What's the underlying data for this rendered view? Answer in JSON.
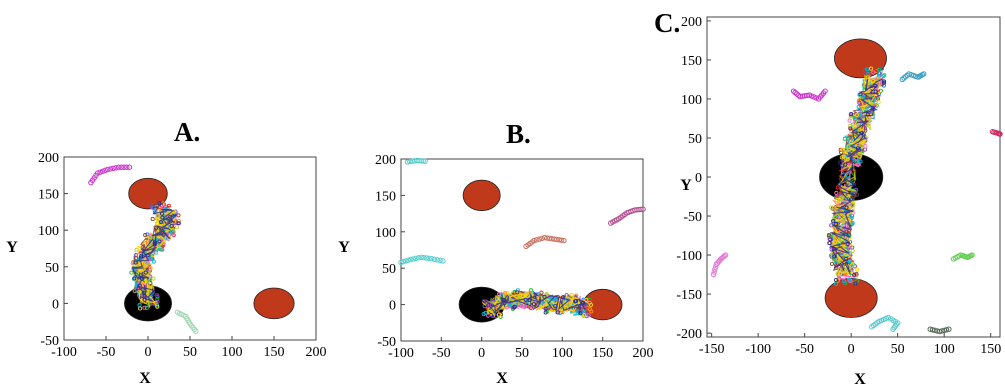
{
  "chart_data": [
    {
      "type": "scatter",
      "panel_label": "A.",
      "xlabel": "X",
      "ylabel": "Y",
      "xlim": [
        -100,
        200
      ],
      "ylim": [
        -50,
        200
      ],
      "xticks": [
        "-100",
        "-50",
        "0",
        "50",
        "100",
        "150",
        "200"
      ],
      "yticks": [
        "-50",
        "0",
        "50",
        "100",
        "150",
        "200"
      ],
      "obstacles": [
        {
          "name": "black-sphere",
          "x": 0,
          "y": 0,
          "rx": 28,
          "ry": 24,
          "color": "#000000"
        },
        {
          "name": "red-sphere-top",
          "x": 0,
          "y": 150,
          "rx": 23,
          "ry": 21,
          "color": "#c0391b"
        },
        {
          "name": "red-sphere-right",
          "x": 150,
          "y": 0,
          "rx": 24,
          "ry": 21,
          "color": "#c0391b"
        }
      ],
      "strands": [
        {
          "color": "#cc2ecc",
          "points": [
            [
              -68,
              165
            ],
            [
              -60,
              178
            ],
            [
              -48,
              183
            ],
            [
              -35,
              186
            ],
            [
              -22,
              186
            ]
          ]
        },
        {
          "color": "#9fd9b0",
          "points": [
            [
              35,
              -12
            ],
            [
              45,
              -18
            ],
            [
              50,
              -28
            ],
            [
              57,
              -38
            ]
          ]
        }
      ],
      "bundle": {
        "colors": [
          "#1f6fff",
          "#ff8c1a",
          "#22c22e",
          "#e02424",
          "#8e44ad",
          "#7a4a2a",
          "#ff66cc",
          "#00bcd4",
          "#c9c928",
          "#ffd700",
          "#2e2e8f"
        ],
        "path": [
          [
            0,
            5
          ],
          [
            -5,
            25
          ],
          [
            -8,
            45
          ],
          [
            -5,
            65
          ],
          [
            8,
            85
          ],
          [
            20,
            100
          ],
          [
            25,
            115
          ],
          [
            15,
            125
          ]
        ]
      }
    },
    {
      "type": "scatter",
      "panel_label": "B.",
      "xlabel": "X",
      "ylabel": "Y",
      "xlim": [
        -100,
        200
      ],
      "ylim": [
        -50,
        200
      ],
      "xticks": [
        "-100",
        "-50",
        "0",
        "50",
        "100",
        "150",
        "200"
      ],
      "yticks": [
        "-50",
        "0",
        "50",
        "100",
        "150",
        "200"
      ],
      "obstacles": [
        {
          "name": "black-sphere",
          "x": 0,
          "y": 0,
          "rx": 28,
          "ry": 24,
          "color": "#000000"
        },
        {
          "name": "red-sphere-top",
          "x": 0,
          "y": 150,
          "rx": 23,
          "ry": 21,
          "color": "#c0391b"
        },
        {
          "name": "red-sphere-right",
          "x": 150,
          "y": 0,
          "rx": 24,
          "ry": 21,
          "color": "#c0391b"
        }
      ],
      "strands": [
        {
          "color": "#55cccc",
          "points": [
            [
              -92,
              196
            ],
            [
              -80,
              198
            ],
            [
              -70,
              197
            ]
          ]
        },
        {
          "color": "#55cccc",
          "points": [
            [
              -100,
              58
            ],
            [
              -88,
              62
            ],
            [
              -75,
              65
            ],
            [
              -62,
              63
            ],
            [
              -48,
              60
            ]
          ]
        },
        {
          "color": "#c87060",
          "points": [
            [
              55,
              80
            ],
            [
              65,
              88
            ],
            [
              78,
              92
            ],
            [
              90,
              90
            ],
            [
              102,
              88
            ]
          ]
        },
        {
          "color": "#b04a8a",
          "points": [
            [
              160,
              112
            ],
            [
              170,
              118
            ],
            [
              180,
              126
            ],
            [
              190,
              130
            ],
            [
              200,
              131
            ]
          ]
        }
      ],
      "bundle": {
        "colors": [
          "#1f6fff",
          "#ff8c1a",
          "#22c22e",
          "#e02424",
          "#8e44ad",
          "#7a4a2a",
          "#ff66cc",
          "#00bcd4",
          "#c9c928",
          "#ffd700",
          "#2e2e8f"
        ],
        "path": [
          [
            12,
            -5
          ],
          [
            30,
            5
          ],
          [
            50,
            8
          ],
          [
            70,
            5
          ],
          [
            90,
            0
          ],
          [
            110,
            2
          ],
          [
            125,
            -5
          ]
        ]
      }
    },
    {
      "type": "scatter",
      "panel_label": "C.",
      "xlabel": "X",
      "ylabel": "Y",
      "xlim": [
        -155,
        160
      ],
      "ylim": [
        -205,
        205
      ],
      "xticks": [
        "-150",
        "-100",
        "-50",
        "0",
        "50",
        "100",
        "150"
      ],
      "yticks": [
        "-200",
        "-150",
        "-100",
        "-50",
        "0",
        "50",
        "100",
        "150",
        "200"
      ],
      "obstacles": [
        {
          "name": "black-sphere",
          "x": 0,
          "y": 0,
          "rx": 34,
          "ry": 30,
          "color": "#000000"
        },
        {
          "name": "red-sphere-top",
          "x": 10,
          "y": 152,
          "rx": 28,
          "ry": 25,
          "color": "#c0391b"
        },
        {
          "name": "red-sphere-bottom",
          "x": 0,
          "y": -155,
          "rx": 28,
          "ry": 25,
          "color": "#c0391b"
        }
      ],
      "strands": [
        {
          "color": "#cc2ecc",
          "points": [
            [
              -62,
              110
            ],
            [
              -55,
              103
            ],
            [
              -45,
              105
            ],
            [
              -35,
              100
            ],
            [
              -28,
              110
            ]
          ]
        },
        {
          "color": "#3a9fbf",
          "points": [
            [
              55,
              125
            ],
            [
              62,
              132
            ],
            [
              72,
              128
            ],
            [
              78,
              132
            ]
          ]
        },
        {
          "color": "#e07ad8",
          "points": [
            [
              -148,
              -125
            ],
            [
              -145,
              -112
            ],
            [
              -140,
              -105
            ],
            [
              -135,
              -100
            ]
          ]
        },
        {
          "color": "#66cc55",
          "points": [
            [
              110,
              -105
            ],
            [
              118,
              -100
            ],
            [
              125,
              -103
            ],
            [
              130,
              -100
            ]
          ]
        },
        {
          "color": "#55cccc",
          "points": [
            [
              22,
              -192
            ],
            [
              30,
              -185
            ],
            [
              40,
              -180
            ],
            [
              50,
              -187
            ],
            [
              45,
              -195
            ]
          ]
        },
        {
          "color": "#556655",
          "points": [
            [
              85,
              -195
            ],
            [
              95,
              -198
            ],
            [
              105,
              -195
            ]
          ]
        },
        {
          "color": "#cc2e66",
          "points": [
            [
              152,
              58
            ],
            [
              158,
              56
            ],
            [
              160,
              55
            ]
          ]
        }
      ],
      "bundle": {
        "colors": [
          "#1f6fff",
          "#ff8c1a",
          "#22c22e",
          "#e02424",
          "#8e44ad",
          "#7a4a2a",
          "#ff66cc",
          "#00bcd4",
          "#c9c928",
          "#ffd700",
          "#2e2e8f"
        ],
        "path": [
          [
            25,
            128
          ],
          [
            20,
            100
          ],
          [
            10,
            70
          ],
          [
            5,
            45
          ],
          [
            0,
            25
          ],
          [
            -5,
            -20
          ],
          [
            -10,
            -50
          ],
          [
            -12,
            -80
          ],
          [
            -10,
            -100
          ],
          [
            -5,
            -125
          ]
        ]
      }
    }
  ]
}
